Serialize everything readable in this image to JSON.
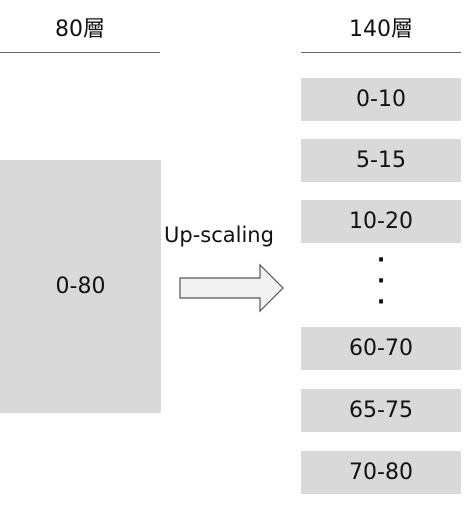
{
  "left": {
    "header": "80層",
    "block_label": "0-80"
  },
  "arrow": {
    "label": "Up-scaling"
  },
  "right": {
    "header": "140層",
    "layers_top": [
      "0-10",
      "5-15",
      "10-20"
    ],
    "ellipsis": [
      "·",
      "·",
      "·"
    ],
    "layers_bottom": [
      "60-70",
      "65-75",
      "70-80"
    ]
  },
  "colors": {
    "block_fill": "#d9d9d9",
    "rule": "#666666",
    "arrow_fill": "#f2f2f2",
    "arrow_stroke": "#555555"
  }
}
